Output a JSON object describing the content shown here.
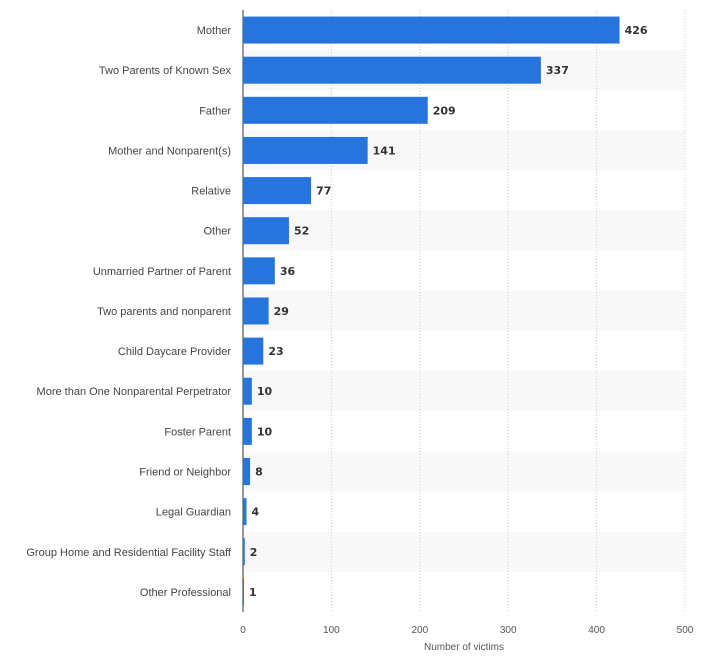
{
  "chart_data": {
    "type": "bar",
    "orientation": "horizontal",
    "title": "",
    "xlabel": "Number of victims",
    "ylabel": "",
    "xlim": [
      0,
      500
    ],
    "xticks": [
      0,
      100,
      200,
      300,
      400,
      500
    ],
    "grid": true,
    "categories": [
      "Mother",
      "Two Parents of Known Sex",
      "Father",
      "Mother and Nonparent(s)",
      "Relative",
      "Other",
      "Unmarried Partner of Parent",
      "Two parents and nonparent",
      "Child Daycare Provider",
      "More than One Nonparental Perpetrator",
      "Foster Parent",
      "Friend or Neighbor",
      "Legal Guardian",
      "Group Home and Residential Facility Staff",
      "Other Professional"
    ],
    "values": [
      426,
      337,
      209,
      141,
      77,
      52,
      36,
      29,
      23,
      10,
      10,
      8,
      4,
      2,
      1
    ],
    "colors": {
      "bar": "#2874dd",
      "band": "#f8f8f8",
      "grid": "#cccccc",
      "axis": "#333333"
    }
  }
}
